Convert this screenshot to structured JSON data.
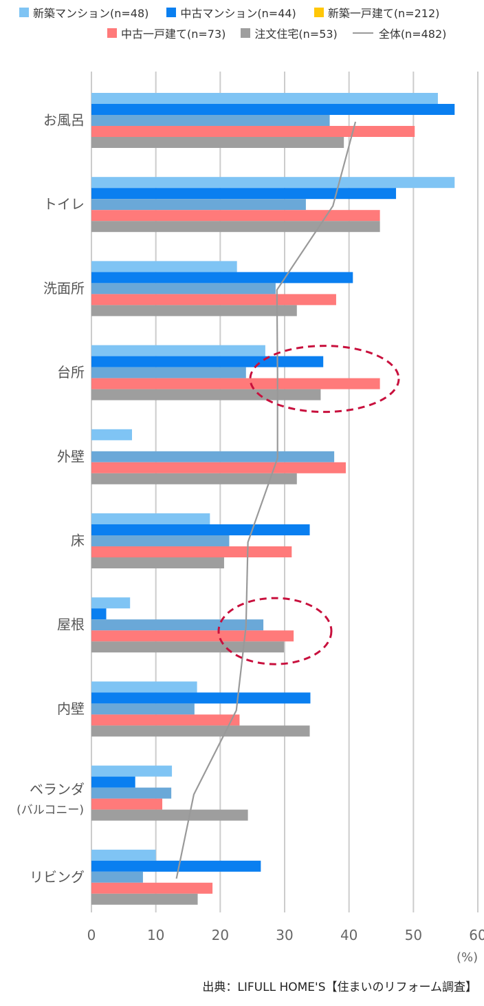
{
  "chart_data": {
    "type": "bar",
    "orientation": "horizontal",
    "categories": [
      "お風呂",
      "トイレ",
      "洗面所",
      "台所",
      "外壁",
      "床",
      "屋根",
      "内壁",
      "ベランダ",
      "リビング"
    ],
    "category_sublabels": [
      "",
      "",
      "",
      "",
      "",
      "",
      "",
      "",
      "(バルコニー)",
      ""
    ],
    "series": [
      {
        "name": "新築マンション(n=48)",
        "color": "#7fc4f4",
        "type": "bar",
        "values": [
          53.8,
          56.4,
          22.6,
          27.0,
          6.3,
          18.4,
          6.0,
          16.4,
          12.5,
          10.0
        ]
      },
      {
        "name": "中古マンション(n=44)",
        "color": "#0a7ff0",
        "type": "bar",
        "values": [
          56.4,
          47.3,
          40.6,
          36.0,
          0,
          33.9,
          2.3,
          34.0,
          6.8,
          26.3
        ]
      },
      {
        "name": "新築一戸建て(n=212)",
        "color": "#ffc708",
        "type": "bar",
        "values": [
          37.0,
          33.3,
          28.6,
          24.0,
          37.7,
          21.4,
          26.7,
          16.0,
          12.4,
          8.0
        ]
      },
      {
        "name": "中古一戸建て(n=73)",
        "color": "#ff7a7a",
        "type": "bar",
        "values": [
          50.2,
          44.8,
          38.0,
          44.8,
          39.5,
          31.1,
          31.4,
          23.0,
          11.0,
          18.8
        ]
      },
      {
        "name": "注文住宅(n=53)",
        "color": "#9e9e9e",
        "type": "bar",
        "values": [
          39.2,
          44.8,
          31.9,
          35.6,
          31.9,
          20.6,
          29.9,
          33.9,
          24.3,
          16.5
        ]
      },
      {
        "name": "全体(n=482)",
        "color": "#999999",
        "type": "line",
        "values": [
          41.0,
          37.5,
          28.8,
          28.9,
          28.9,
          24.3,
          24.0,
          22.5,
          15.9,
          13.2
        ]
      }
    ],
    "xlim": [
      0,
      60
    ],
    "xticks": [
      0,
      10,
      20,
      30,
      40,
      50,
      60
    ],
    "xlabel": "(%)",
    "grid": true,
    "legend_position": "top"
  },
  "legend": [
    {
      "label": "新築マンション(n=48)",
      "color": "#7fc4f4",
      "kind": "box"
    },
    {
      "label": "中古マンション(n=44)",
      "color": "#0a7ff0",
      "kind": "box"
    },
    {
      "label": "新築一戸建て(n=212)",
      "color": "#ffc708",
      "kind": "box"
    },
    {
      "label": "中古一戸建て(n=73)",
      "color": "#ff7a7a",
      "kind": "box"
    },
    {
      "label": "注文住宅(n=53)",
      "color": "#9e9e9e",
      "kind": "box"
    },
    {
      "label": "全体(n=482)",
      "color": "#999999",
      "kind": "line"
    }
  ],
  "highlights": [
    {
      "category": "台所",
      "color": "#c8103d"
    },
    {
      "category": "屋根",
      "color": "#c8103d"
    }
  ],
  "source": "出典：LIFULL HOME'S【住まいのリフォーム調査】",
  "unit": "(%)"
}
